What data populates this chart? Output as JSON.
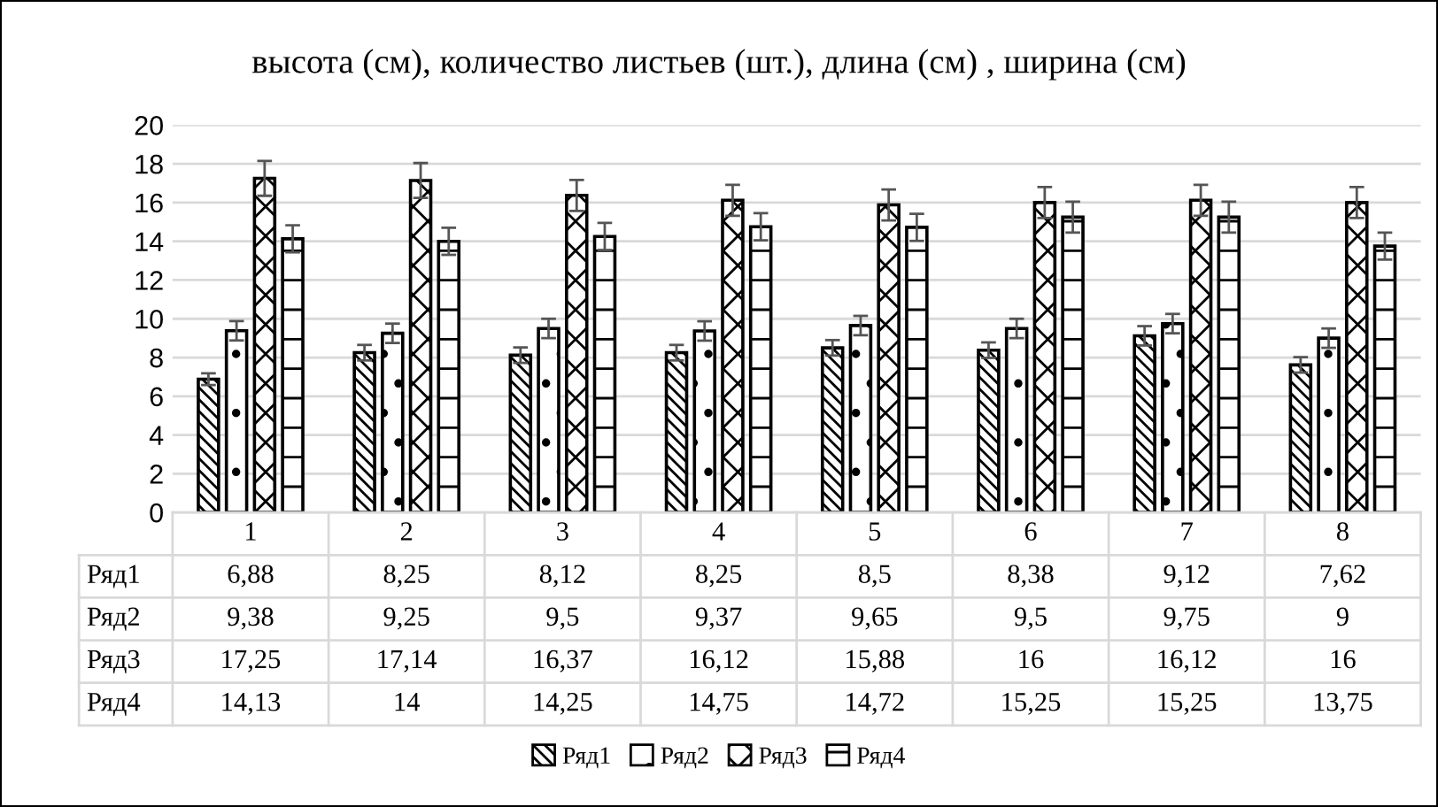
{
  "chart_data": {
    "type": "bar",
    "title": "высота (см), количество листьев (шт.), длина (см) , ширина (см)",
    "categories": [
      "1",
      "2",
      "3",
      "4",
      "5",
      "6",
      "7",
      "8"
    ],
    "series": [
      {
        "name": "Ряд1",
        "color": "#000000",
        "values": [
          6.88,
          8.25,
          8.12,
          8.25,
          8.5,
          8.38,
          9.12,
          7.62
        ],
        "value_labels": [
          "6,88",
          "8,25",
          "8,12",
          "8,25",
          "8,5",
          "8,38",
          "9,12",
          "7,62"
        ],
        "errors": [
          0.3,
          0.4,
          0.4,
          0.4,
          0.4,
          0.4,
          0.5,
          0.4
        ]
      },
      {
        "name": "Ряд2",
        "color": "#000000",
        "values": [
          9.38,
          9.25,
          9.5,
          9.37,
          9.65,
          9.5,
          9.75,
          9
        ],
        "value_labels": [
          "9,38",
          "9,25",
          "9,5",
          "9,37",
          "9,65",
          "9,5",
          "9,75",
          "9"
        ],
        "errors": [
          0.5,
          0.5,
          0.5,
          0.5,
          0.5,
          0.5,
          0.5,
          0.5
        ]
      },
      {
        "name": "Ряд3",
        "color": "#000000",
        "values": [
          17.25,
          17.14,
          16.37,
          16.12,
          15.88,
          16,
          16.12,
          16
        ],
        "value_labels": [
          "17,25",
          "17,14",
          "16,37",
          "16,12",
          "15,88",
          "16",
          "16,12",
          "16"
        ],
        "errors": [
          0.9,
          0.9,
          0.8,
          0.8,
          0.8,
          0.8,
          0.8,
          0.8
        ]
      },
      {
        "name": "Ряд4",
        "color": "#000000",
        "values": [
          14.13,
          14,
          14.25,
          14.75,
          14.72,
          15.25,
          15.25,
          13.75
        ],
        "value_labels": [
          "14,13",
          "14",
          "14,25",
          "14,75",
          "14,72",
          "15,25",
          "15,25",
          "13,75"
        ],
        "errors": [
          0.7,
          0.7,
          0.7,
          0.7,
          0.7,
          0.8,
          0.8,
          0.7
        ]
      }
    ],
    "ylim": [
      0,
      20
    ],
    "yticks": [
      0,
      2,
      4,
      6,
      8,
      10,
      12,
      14,
      16,
      18,
      20
    ],
    "grid": "y",
    "legend": "bottom"
  }
}
